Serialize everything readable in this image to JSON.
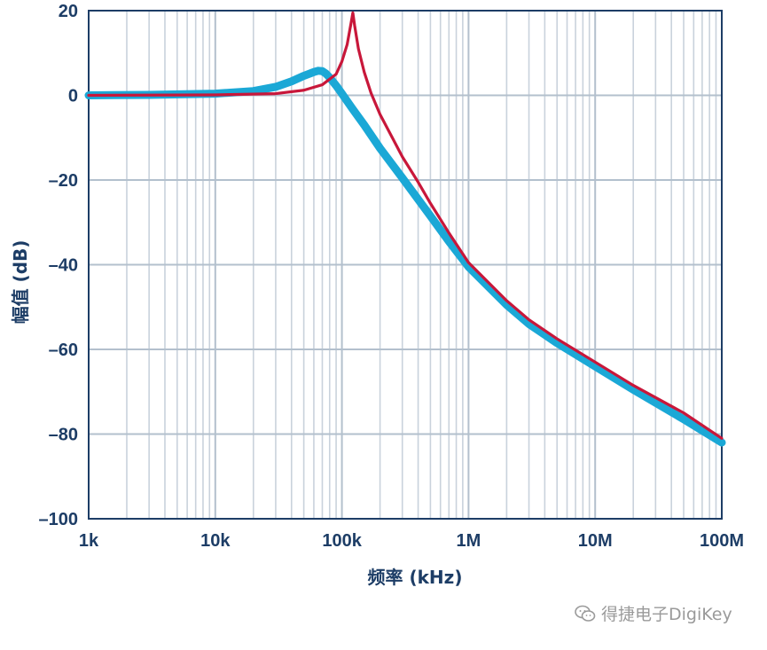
{
  "chart_data": {
    "type": "line",
    "x_scale": "log",
    "xlabel": "频率 (kHz)",
    "ylabel": "幅值 (dB)",
    "xlim": [
      1000,
      100000000
    ],
    "ylim": [
      -100,
      20
    ],
    "x_ticks": [
      {
        "value": 1000,
        "label": "1k"
      },
      {
        "value": 10000,
        "label": "10k"
      },
      {
        "value": 100000,
        "label": "100k"
      },
      {
        "value": 1000000,
        "label": "1M"
      },
      {
        "value": 10000000,
        "label": "10M"
      },
      {
        "value": 100000000,
        "label": "100M"
      }
    ],
    "y_ticks": [
      {
        "value": 20,
        "label": "20"
      },
      {
        "value": 0,
        "label": "0"
      },
      {
        "value": -20,
        "label": "–20"
      },
      {
        "value": -40,
        "label": "–40"
      },
      {
        "value": -60,
        "label": "–60"
      },
      {
        "value": -80,
        "label": "–80"
      },
      {
        "value": -100,
        "label": "–100"
      }
    ],
    "grid": true,
    "series": [
      {
        "color": "#1ba8d6",
        "points": [
          [
            1000,
            0
          ],
          [
            3000,
            0.1
          ],
          [
            10000,
            0.4
          ],
          [
            20000,
            1.0
          ],
          [
            30000,
            2.0
          ],
          [
            40000,
            3.3
          ],
          [
            50000,
            4.6
          ],
          [
            60000,
            5.5
          ],
          [
            65000,
            5.8
          ],
          [
            70000,
            5.7
          ],
          [
            75000,
            5.1
          ],
          [
            80000,
            4.2
          ],
          [
            90000,
            2.3
          ],
          [
            100000,
            0.4
          ],
          [
            120000,
            -3.0
          ],
          [
            150000,
            -7.0
          ],
          [
            200000,
            -12.5
          ],
          [
            300000,
            -19.5
          ],
          [
            500000,
            -28.5
          ],
          [
            700000,
            -34.5
          ],
          [
            1000000,
            -40.5
          ],
          [
            2000000,
            -49.5
          ],
          [
            3000000,
            -54.0
          ],
          [
            5000000,
            -58.5
          ],
          [
            10000000,
            -64.0
          ],
          [
            20000000,
            -69.5
          ],
          [
            50000000,
            -76.5
          ],
          [
            100000000,
            -82.0
          ]
        ]
      },
      {
        "color": "#c8173a",
        "points": [
          [
            1000,
            0
          ],
          [
            10000,
            0.1
          ],
          [
            30000,
            0.4
          ],
          [
            50000,
            1.2
          ],
          [
            70000,
            2.5
          ],
          [
            90000,
            5.0
          ],
          [
            100000,
            8.0
          ],
          [
            110000,
            12.0
          ],
          [
            118000,
            17.0
          ],
          [
            122000,
            19.5
          ],
          [
            126000,
            16.5
          ],
          [
            135000,
            11.0
          ],
          [
            150000,
            5.5
          ],
          [
            170000,
            0.5
          ],
          [
            200000,
            -4.5
          ],
          [
            250000,
            -10.0
          ],
          [
            300000,
            -14.5
          ],
          [
            400000,
            -20.5
          ],
          [
            500000,
            -25.5
          ],
          [
            700000,
            -32.5
          ],
          [
            1000000,
            -39.5
          ],
          [
            2000000,
            -48.5
          ],
          [
            3000000,
            -53.0
          ],
          [
            5000000,
            -57.5
          ],
          [
            10000000,
            -63.0
          ],
          [
            20000000,
            -68.5
          ],
          [
            50000000,
            -75.0
          ],
          [
            100000000,
            -81.0
          ]
        ]
      }
    ]
  },
  "watermark": {
    "text": "得捷电子DigiKey",
    "icon": "wechat-icon"
  }
}
